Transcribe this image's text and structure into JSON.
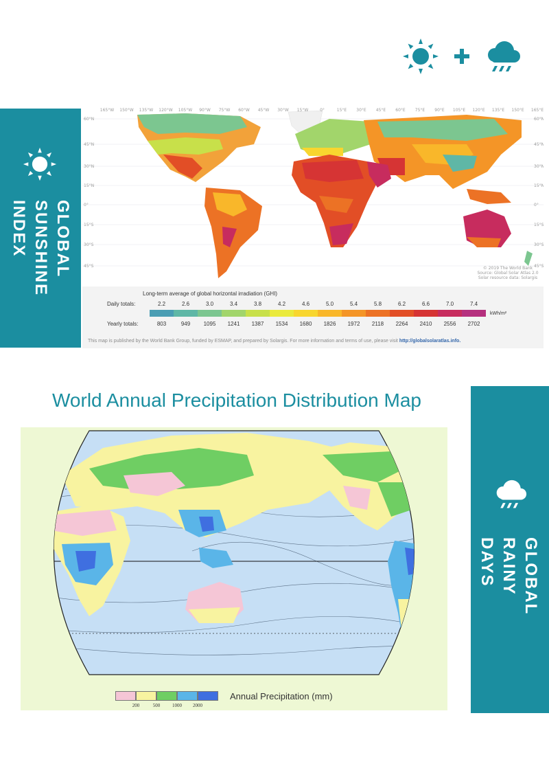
{
  "top_icons": [
    "sun-icon",
    "plus-icon",
    "rain-cloud-icon"
  ],
  "colors": {
    "accent": "#1b8ea0"
  },
  "sunshine_band": {
    "label_lines": [
      "GLOBAL",
      "SUNSHINE",
      "INDEX"
    ],
    "icon": "sun-icon"
  },
  "rainy_band": {
    "label_lines": [
      "GLOBAL",
      "RAINY",
      "DAYS"
    ],
    "icon": "rain-cloud-icon"
  },
  "solar_map": {
    "longitude_labels": [
      "165°W",
      "150°W",
      "135°W",
      "120°W",
      "105°W",
      "90°W",
      "75°W",
      "60°W",
      "45°W",
      "30°W",
      "15°W",
      "0°",
      "15°E",
      "30°E",
      "45°E",
      "60°E",
      "75°E",
      "90°E",
      "105°E",
      "120°E",
      "135°E",
      "150°E",
      "165°E"
    ],
    "latitude_labels": [
      "60°N",
      "45°N",
      "30°N",
      "15°N",
      "0°",
      "15°S",
      "30°S",
      "45°S"
    ],
    "attribution": [
      "© 2019 The World Bank",
      "Source: Global Solar Atlas 2.0",
      "Solar resource data: Solargis"
    ],
    "legend_title": "Long-term average of global horizontal irradiation (GHI)",
    "daily_label": "Daily totals:",
    "yearly_label": "Yearly totals:",
    "daily_values": [
      "2.2",
      "2.6",
      "3.0",
      "3.4",
      "3.8",
      "4.2",
      "4.6",
      "5.0",
      "5.4",
      "5.8",
      "6.2",
      "6.6",
      "7.0",
      "7.4"
    ],
    "yearly_values": [
      "803",
      "949",
      "1095",
      "1241",
      "1387",
      "1534",
      "1680",
      "1826",
      "1972",
      "2118",
      "2264",
      "2410",
      "2556",
      "2702"
    ],
    "unit": "kWh/m²",
    "scale_colors": [
      "#4a9db3",
      "#5fb7a6",
      "#7cc690",
      "#a2d56b",
      "#c8e04a",
      "#eaea3c",
      "#f8d62f",
      "#f9b72a",
      "#f49527",
      "#ec7225",
      "#e24e26",
      "#d63434",
      "#c72c5e",
      "#b5307e"
    ],
    "credit_text": "This map is published by the World Bank Group, funded by ESMAP, and prepared by Solargis. For more information and terms of use, please visit",
    "credit_url": "http://globalsolaratlas.info."
  },
  "precip_map": {
    "title": "World Annual Precipitation Distribution Map",
    "legend_colors": [
      "#f5c6d6",
      "#f8f3a0",
      "#6fce63",
      "#5ab5e8",
      "#3f6fe0"
    ],
    "legend_ticks": [
      "200",
      "500",
      "1000",
      "2000"
    ],
    "legend_label": "Annual Precipitation (mm)"
  }
}
